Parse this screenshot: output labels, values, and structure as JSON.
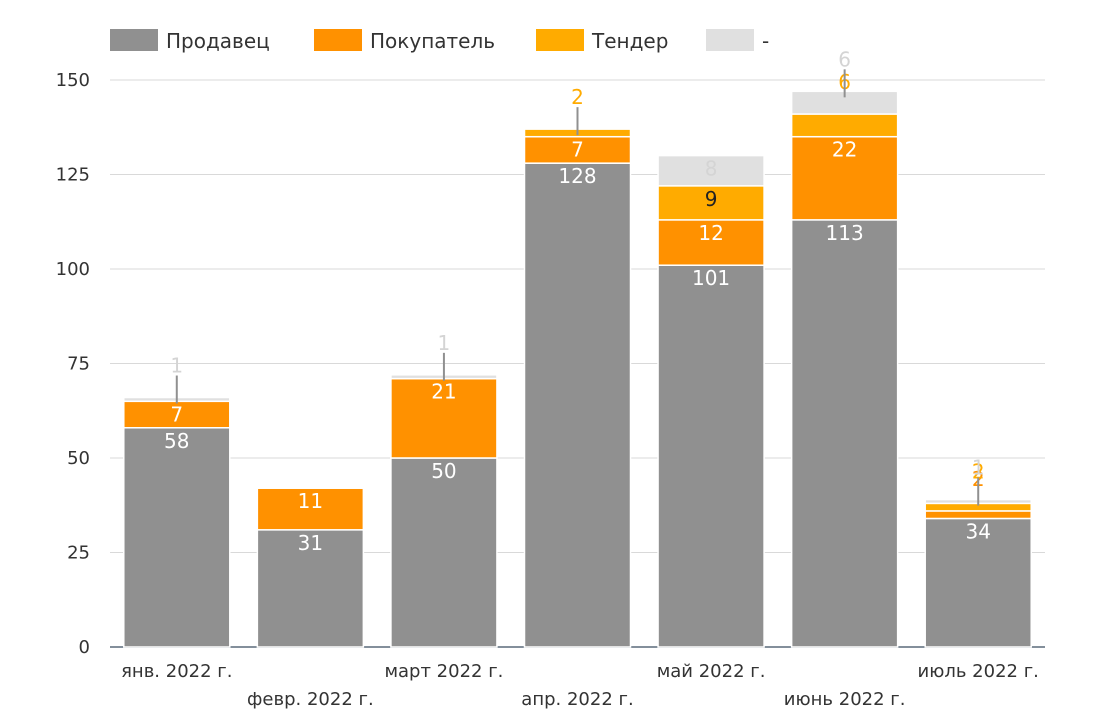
{
  "chart_data": {
    "type": "bar",
    "stacked": true,
    "categories": [
      "янв. 2022 г.",
      "февр. 2022 г.",
      "март 2022 г.",
      "апр. 2022 г.",
      "май 2022 г.",
      "июнь 2022 г.",
      "июль 2022 г."
    ],
    "series": [
      {
        "name": "Продавец",
        "color": "#909090",
        "values": [
          58,
          31,
          50,
          128,
          101,
          113,
          34
        ]
      },
      {
        "name": "Покупатель",
        "color": "#ff9100",
        "values": [
          7,
          11,
          21,
          7,
          12,
          22,
          2
        ]
      },
      {
        "name": "Тендер",
        "color": "#ffab00",
        "values": [
          0,
          0,
          0,
          2,
          9,
          6,
          2
        ]
      },
      {
        "name": "-",
        "color": "#e0e0e0",
        "values": [
          1,
          0,
          1,
          0,
          8,
          6,
          1
        ]
      }
    ],
    "ylim": [
      0,
      150
    ],
    "yticks": [
      0,
      25,
      50,
      75,
      100,
      125,
      150
    ],
    "grid": true,
    "legend": "top-left",
    "title": "",
    "xlabel": "",
    "ylabel": ""
  }
}
